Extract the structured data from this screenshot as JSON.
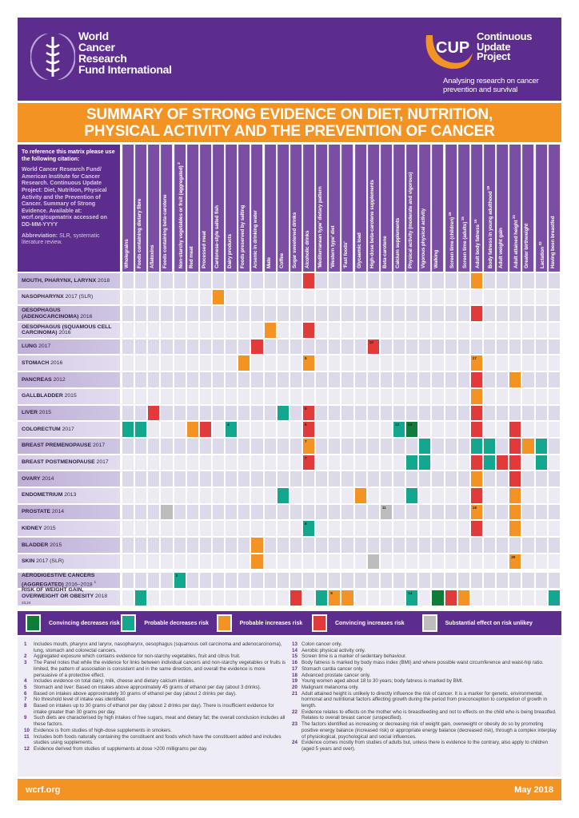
{
  "header": {
    "org_name_lines": [
      "World",
      "Cancer",
      "Research",
      "Fund International"
    ],
    "cup_logo_text": "CUP",
    "cup_name_lines": [
      "Continuous",
      "Update",
      "Project"
    ],
    "cup_tagline": "Analysing research on cancer prevention and survival"
  },
  "title_lines": [
    "SUMMARY OF STRONG EVIDENCE ON DIET, NUTRITION,",
    "PHYSICAL ACTIVITY AND THE PREVENTION OF CANCER"
  ],
  "intro": {
    "citation_heading": "To reference this matrix please use the following citation:",
    "citation": "World Cancer Research Fund/ American Institute for Cancer Research. Continuous Update Project: Diet, Nutrition, Physical Activity and the Prevention of Cancer. Summary of Strong Evidence. Available at: wcrf.org/cupmatrix accessed on DD-MM-YYYY",
    "abbrev_label": "Abbreviation:",
    "abbrev_text": "SLR, systematic literature review."
  },
  "colors": {
    "convincing_decreases": "#0f7c3a",
    "probable_decreases": "#13a78f",
    "probable_increases": "#f39323",
    "convincing_increases": "#e03a3a",
    "substantial_effect_unlikely": "#bdbdbd",
    "purple": "#5c2d8c",
    "orange": "#f39323"
  },
  "columns": [
    {
      "label": "Wholegrains"
    },
    {
      "label": "Foods containing dietary fibre"
    },
    {
      "label": "Aflatoxins"
    },
    {
      "label": "Foods containing beta-carotene"
    },
    {
      "label": "Non-starchy vegetables or fruit (aggregated)",
      "sup": "2"
    },
    {
      "label": "Red meat"
    },
    {
      "label": "Processed meat"
    },
    {
      "label": "Cantonese-style salted fish"
    },
    {
      "label": "Dairy products"
    },
    {
      "label": "Foods preserved by salting"
    },
    {
      "label": "Arsenic in drinking water"
    },
    {
      "label": "Mate"
    },
    {
      "label": "Coffee"
    },
    {
      "label": "Sugar sweetened drinks"
    },
    {
      "label": "Alcoholic drinks"
    },
    {
      "label": "'Mediterranean type' dietary pattern"
    },
    {
      "label": "'Western type' diet"
    },
    {
      "label": "'Fast foods'"
    },
    {
      "label": "Glycaemic load"
    },
    {
      "label": "High-dose beta-carotene supplements"
    },
    {
      "label": "Beta-carotene"
    },
    {
      "label": "Calcium supplements"
    },
    {
      "label": "Physical activity (moderate and vigorous)"
    },
    {
      "label": "Vigorous physical activity"
    },
    {
      "label": "Walking"
    },
    {
      "label": "Screen time (children)",
      "sup": "15"
    },
    {
      "label": "Screen time (adults)",
      "sup": "15"
    },
    {
      "label": "Adult body fatness",
      "sup": "16"
    },
    {
      "label": "Body fatness in young adulthood",
      "sup": "19"
    },
    {
      "label": "Adult weight gain"
    },
    {
      "label": "Adult attained height",
      "sup": "21"
    },
    {
      "label": "Greater birthweight"
    },
    {
      "label": "Lactation",
      "sup": "22"
    },
    {
      "label": "Having been breastfed"
    }
  ],
  "rows": [
    {
      "name": "MOUTH, PHARYNX, LARYNX",
      "year": "2018",
      "marks": [
        {
          "col": 14,
          "level": "convincing_increases"
        },
        {
          "col": 27,
          "level": "probable_increases"
        }
      ]
    },
    {
      "name": "NASOPHARYNX",
      "year": "2017 (SLR)",
      "marks": [
        {
          "col": 7,
          "level": "probable_increases"
        }
      ]
    },
    {
      "name": "OESOPHAGUS (ADENOCARCINOMA)",
      "year": "2016",
      "marks": [
        {
          "col": 27,
          "level": "convincing_increases"
        }
      ]
    },
    {
      "name": "OESOPHAGUS (SQUAMOUS CELL CARCINOMA)",
      "year": "2016",
      "marks": [
        {
          "col": 11,
          "level": "probable_increases"
        },
        {
          "col": 14,
          "level": "convincing_increases"
        }
      ]
    },
    {
      "name": "LUNG",
      "year": "2017",
      "marks": [
        {
          "col": 10,
          "level": "convincing_increases"
        },
        {
          "col": 19,
          "level": "convincing_increases",
          "note": "10"
        }
      ]
    },
    {
      "name": "STOMACH",
      "year": "2016",
      "marks": [
        {
          "col": 9,
          "level": "probable_increases"
        },
        {
          "col": 14,
          "level": "probable_increases",
          "note": "5"
        },
        {
          "col": 27,
          "level": "probable_increases",
          "note": "17"
        }
      ]
    },
    {
      "name": "PANCREAS",
      "year": "2012",
      "marks": [
        {
          "col": 27,
          "level": "convincing_increases"
        },
        {
          "col": 30,
          "level": "probable_increases"
        }
      ]
    },
    {
      "name": "GALLBLADDER",
      "year": "2015",
      "marks": [
        {
          "col": 27,
          "level": "probable_increases"
        }
      ]
    },
    {
      "name": "LIVER",
      "year": "2015",
      "marks": [
        {
          "col": 2,
          "level": "convincing_increases"
        },
        {
          "col": 12,
          "level": "probable_decreases"
        },
        {
          "col": 14,
          "level": "convincing_increases",
          "note": "5"
        },
        {
          "col": 27,
          "level": "convincing_increases"
        }
      ]
    },
    {
      "name": "COLORECTUM",
      "year": "2017",
      "marks": [
        {
          "col": 0,
          "level": "probable_decreases"
        },
        {
          "col": 1,
          "level": "probable_decreases"
        },
        {
          "col": 5,
          "level": "probable_increases"
        },
        {
          "col": 6,
          "level": "convincing_increases"
        },
        {
          "col": 8,
          "level": "probable_decreases",
          "note": "4"
        },
        {
          "col": 14,
          "level": "convincing_increases",
          "note": "6"
        },
        {
          "col": 21,
          "level": "probable_decreases",
          "note": "12"
        },
        {
          "col": 22,
          "level": "convincing_decreases",
          "note": "13"
        },
        {
          "col": 27,
          "level": "convincing_increases"
        },
        {
          "col": 30,
          "level": "convincing_increases"
        }
      ]
    },
    {
      "name": "BREAST PREMENOPAUSE",
      "year": "2017",
      "marks": [
        {
          "col": 14,
          "level": "probable_increases",
          "note": "7"
        },
        {
          "col": 23,
          "level": "probable_decreases"
        },
        {
          "col": 27,
          "level": "probable_decreases"
        },
        {
          "col": 28,
          "level": "probable_decreases"
        },
        {
          "col": 30,
          "level": "convincing_increases"
        },
        {
          "col": 31,
          "level": "probable_increases"
        },
        {
          "col": 32,
          "level": "probable_decreases"
        }
      ]
    },
    {
      "name": "BREAST POSTMENOPAUSE",
      "year": "2017",
      "marks": [
        {
          "col": 14,
          "level": "convincing_increases",
          "note": "7"
        },
        {
          "col": 22,
          "level": "probable_decreases"
        },
        {
          "col": 23,
          "level": "probable_decreases"
        },
        {
          "col": 27,
          "level": "convincing_increases"
        },
        {
          "col": 28,
          "level": "probable_decreases"
        },
        {
          "col": 29,
          "level": "convincing_increases"
        },
        {
          "col": 30,
          "level": "convincing_increases"
        },
        {
          "col": 32,
          "level": "probable_decreases"
        }
      ]
    },
    {
      "name": "OVARY",
      "year": "2014",
      "marks": [
        {
          "col": 27,
          "level": "probable_increases"
        },
        {
          "col": 30,
          "level": "convincing_increases"
        }
      ]
    },
    {
      "name": "ENDOMETRIUM",
      "year": "2013",
      "marks": [
        {
          "col": 12,
          "level": "probable_decreases"
        },
        {
          "col": 18,
          "level": "probable_increases"
        },
        {
          "col": 22,
          "level": "probable_decreases"
        },
        {
          "col": 27,
          "level": "convincing_increases"
        },
        {
          "col": 30,
          "level": "probable_increases"
        }
      ]
    },
    {
      "name": "PROSTATE",
      "year": "2014",
      "marks": [
        {
          "col": 3,
          "level": "substantial_effect_unlikely"
        },
        {
          "col": 20,
          "level": "substantial_effect_unlikely",
          "note": "11"
        },
        {
          "col": 27,
          "level": "probable_increases",
          "note": "18"
        },
        {
          "col": 30,
          "level": "probable_increases"
        }
      ]
    },
    {
      "name": "KIDNEY",
      "year": "2015",
      "marks": [
        {
          "col": 14,
          "level": "probable_decreases",
          "note": "8"
        },
        {
          "col": 27,
          "level": "convincing_increases"
        },
        {
          "col": 30,
          "level": "probable_increases"
        }
      ]
    },
    {
      "name": "BLADDER",
      "year": "2015",
      "marks": [
        {
          "col": 10,
          "level": "probable_increases"
        }
      ]
    },
    {
      "name": "SKIN",
      "year": "2017 (SLR)",
      "marks": [
        {
          "col": 10,
          "level": "probable_increases"
        },
        {
          "col": 19,
          "level": "substantial_effect_unlikely"
        },
        {
          "col": 30,
          "level": "probable_increases",
          "note": "20"
        }
      ]
    },
    {
      "name": "AERODIGESTIVE CANCERS (AGGREGATED)",
      "year": "2016–2018",
      "sup": "1",
      "marks": [
        {
          "col": 4,
          "level": "probable_decreases",
          "note": "3"
        }
      ]
    },
    {
      "name": "RISK OF WEIGHT GAIN, OVERWEIGHT OR OBESITY",
      "year": "2018",
      "sup": "23,24",
      "marks": [
        {
          "col": 1,
          "level": "probable_decreases"
        },
        {
          "col": 13,
          "level": "convincing_increases"
        },
        {
          "col": 15,
          "level": "probable_decreases"
        },
        {
          "col": 16,
          "level": "probable_increases",
          "note": "9"
        },
        {
          "col": 17,
          "level": "probable_increases"
        },
        {
          "col": 22,
          "level": "probable_decreases",
          "note": "14"
        },
        {
          "col": 24,
          "level": "convincing_decreases"
        },
        {
          "col": 25,
          "level": "convincing_increases"
        },
        {
          "col": 26,
          "level": "probable_increases"
        },
        {
          "col": 33,
          "level": "probable_decreases"
        }
      ]
    }
  ],
  "legend": [
    {
      "level": "convincing_decreases",
      "label": "Convincing decreases risk"
    },
    {
      "level": "probable_decreases",
      "label": "Probable decreases risk"
    },
    {
      "level": "probable_increases",
      "label": "Probable increases risk"
    },
    {
      "level": "convincing_increases",
      "label": "Convincing increases risk"
    },
    {
      "level": "substantial_effect_unlikely",
      "label": "Substantial effect on risk unlikey"
    }
  ],
  "footnotes_left": [
    {
      "num": "1",
      "text": "Includes mouth, pharynx and larynx, nasopharynx, oesophagus (squamous cell carcinoma and adenocarcinoma), lung, stomach and colorectal cancers."
    },
    {
      "num": "2",
      "text": "Aggregated exposure which contains evidence for non-starchy vegetables, fruit and citrus fruit."
    },
    {
      "num": "3",
      "text": "The Panel notes that while the evidence for links between individual cancers and non-starchy vegetables or fruits is limited, the pattern of association is consistent and in the same direction, and overall the evidence is more persuasive of a protective effect."
    },
    {
      "num": "4",
      "text": "Includes evidence on total dairy, milk, cheese and dietary calcium intakes."
    },
    {
      "num": "5",
      "text": "Stomach and liver: Based on intakes above approximately 45 grams of ethanol per day (about 3 drinks)."
    },
    {
      "num": "6",
      "text": "Based on intakes above approximately 30 grams of ethanol per day (about 2 drinks per day)."
    },
    {
      "num": "7",
      "text": "No threshold level of intake was identified."
    },
    {
      "num": "8",
      "text": "Based on intakes up to 30 grams of ethanol per day (about 2 drinks per day). There is insufficient evidence for intake greater than 30 grams per day."
    },
    {
      "num": "9",
      "text": "Such diets are characterised by high intakes of free sugars, meat and dietary fat; the overall conclusion includes all these factors."
    },
    {
      "num": "10",
      "text": "Evidence is from studies of high-dose supplements in smokers."
    },
    {
      "num": "11",
      "text": "Includes both foods naturally containing the constituent and foods which have the constituent added and includes studies using supplements."
    },
    {
      "num": "12",
      "text": "Evidence derived from studies of supplements at dose >200 milligrams per day."
    }
  ],
  "footnotes_right": [
    {
      "num": "13",
      "text": "Colon cancer only."
    },
    {
      "num": "14",
      "text": "Aerobic physical activity only."
    },
    {
      "num": "15",
      "text": "Screen time is a marker of sedentary behaviour."
    },
    {
      "num": "16",
      "text": "Body fatness is marked by body mass index (BMI) and where possible waist circumference and waist-hip ratio."
    },
    {
      "num": "17",
      "text": "Stomach cardia cancer only."
    },
    {
      "num": "18",
      "text": "Advanced prostate cancer only."
    },
    {
      "num": "19",
      "text": "Young women aged about 18 to 30 years; body fatness is marked by BMI."
    },
    {
      "num": "20",
      "text": "Malignant melanoma only."
    },
    {
      "num": "21",
      "text": "Adult attained height is unlikely to directly influence the risk of cancer. It is a marker for genetic, environmental, hormonal and nutritional factors affecting growth during the period from preconception to completion of growth in length."
    },
    {
      "num": "22",
      "text": "Evidence relates to effects on the mother who is breastfeeding and not to effects on the child who is being breastfed. Relates to overall breast cancer (unspecified)."
    },
    {
      "num": "23",
      "text": "The factors identified as increasing or decreasing risk of weight gain, overweight or obesity do so by promoting positive energy balance (increased risk) or appropriate energy balance (decreased risk), through a complex interplay of physiological, psychological and social influences."
    },
    {
      "num": "24",
      "text": "Evidence comes mostly from studies of adults but, unless there is evidence to the contrary, also apply to children (aged 5 years and over)."
    }
  ],
  "footer": {
    "website": "wcrf.org",
    "date": "May 2018"
  }
}
